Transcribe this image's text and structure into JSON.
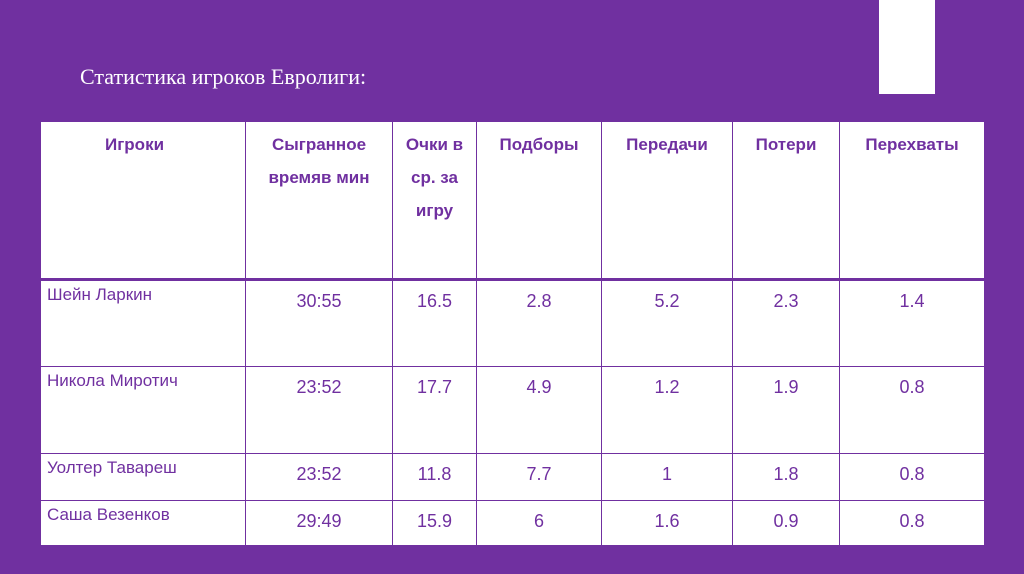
{
  "slide": {
    "title": "Статистика игроков Евролиги:"
  },
  "colors": {
    "background": "#7030a0",
    "table_background": "#ffffff",
    "table_text": "#7030a0",
    "title_text": "#ffffff"
  },
  "table": {
    "headers": [
      "Игроки",
      "Сыгранное времяв мин",
      "Очки в ср. за игру",
      "Подборы",
      "Передачи",
      "Потери",
      "Перехваты"
    ],
    "rows": [
      [
        "Шейн Ларкин",
        "30:55",
        "16.5",
        "2.8",
        "5.2",
        "2.3",
        "1.4"
      ],
      [
        "Никола Миротич",
        "23:52",
        "17.7",
        "4.9",
        "1.2",
        "1.9",
        "0.8"
      ],
      [
        "Уолтер Тавареш",
        "23:52",
        "11.8",
        "7.7",
        "1",
        "1.8",
        "0.8"
      ],
      [
        "Саша Везенков",
        "29:49",
        "15.9",
        "6",
        "1.6",
        "0.9",
        "0.8"
      ]
    ]
  }
}
